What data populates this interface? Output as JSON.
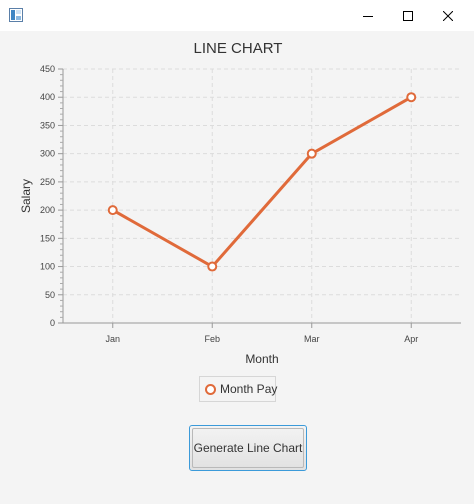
{
  "window": {
    "title": ""
  },
  "icons": {
    "app": "java-app-icon",
    "minimize": "minimize-icon",
    "maximize": "maximize-icon",
    "close": "close-icon"
  },
  "colors": {
    "series": "#e06a3a",
    "grid": "#dcdcdc",
    "background": "#f4f4f4",
    "button_focus": "#3b9ad9"
  },
  "chart_data": {
    "type": "line",
    "title": "LINE CHART",
    "xlabel": "Month",
    "ylabel": "Salary",
    "categories": [
      "Jan",
      "Feb",
      "Mar",
      "Apr"
    ],
    "ylim": [
      0,
      450
    ],
    "yticks": [
      0,
      50,
      100,
      150,
      200,
      250,
      300,
      350,
      400,
      450
    ],
    "grid": true,
    "legend_position": "bottom",
    "series": [
      {
        "name": "Month Pay",
        "values": [
          200,
          100,
          300,
          400
        ]
      }
    ]
  },
  "legend": {
    "label": "Month Pay"
  },
  "button": {
    "label": "Generate Line Chart"
  }
}
